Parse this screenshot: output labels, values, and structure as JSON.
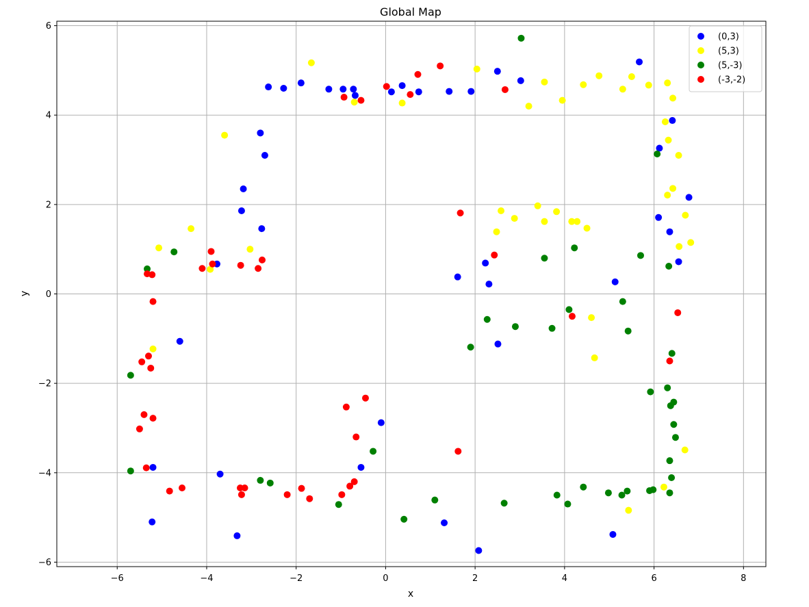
{
  "chart_data": {
    "type": "scatter",
    "title": "Global Map",
    "xlabel": "x",
    "ylabel": "y",
    "xlim": [
      -7.35,
      8.5
    ],
    "ylim": [
      -6.1,
      6.1
    ],
    "x_ticks": [
      -6,
      -4,
      -2,
      0,
      2,
      4,
      6,
      8
    ],
    "x_tick_labels": [
      "−6",
      "−4",
      "−2",
      "0",
      "2",
      "4",
      "6",
      "8"
    ],
    "y_ticks": [
      -6,
      -4,
      -2,
      0,
      2,
      4,
      6
    ],
    "y_tick_labels": [
      "−6",
      "−4",
      "−2",
      "0",
      "2",
      "4",
      "6"
    ],
    "grid": true,
    "legend_position": "top-right",
    "series": [
      {
        "name": "(0,3)",
        "color": "#0000ff",
        "points": [
          [
            -2.62,
            4.63
          ],
          [
            -2.28,
            4.6
          ],
          [
            -1.89,
            4.72
          ],
          [
            -1.27,
            4.58
          ],
          [
            -0.95,
            4.58
          ],
          [
            -0.72,
            4.58
          ],
          [
            -0.68,
            4.44
          ],
          [
            0.13,
            4.52
          ],
          [
            0.37,
            4.66
          ],
          [
            0.74,
            4.52
          ],
          [
            1.42,
            4.53
          ],
          [
            1.91,
            4.53
          ],
          [
            2.5,
            4.98
          ],
          [
            3.02,
            4.77
          ],
          [
            5.67,
            5.19
          ],
          [
            -2.8,
            3.6
          ],
          [
            -2.7,
            3.1
          ],
          [
            -3.18,
            2.35
          ],
          [
            -3.22,
            1.86
          ],
          [
            -2.77,
            1.46
          ],
          [
            -3.77,
            0.67
          ],
          [
            -4.6,
            -1.06
          ],
          [
            -5.2,
            -3.88
          ],
          [
            -5.22,
            -5.1
          ],
          [
            -3.7,
            -4.03
          ],
          [
            -3.32,
            -5.41
          ],
          [
            -0.55,
            -3.88
          ],
          [
            -0.1,
            -2.88
          ],
          [
            1.31,
            -5.12
          ],
          [
            2.08,
            -5.74
          ],
          [
            5.08,
            -5.38
          ],
          [
            1.61,
            0.38
          ],
          [
            2.23,
            0.69
          ],
          [
            2.31,
            0.22
          ],
          [
            2.51,
            -1.12
          ],
          [
            5.13,
            0.27
          ],
          [
            6.41,
            3.88
          ],
          [
            6.12,
            3.26
          ],
          [
            6.1,
            1.71
          ],
          [
            6.35,
            1.39
          ],
          [
            6.55,
            0.72
          ],
          [
            6.78,
            2.16
          ]
        ]
      },
      {
        "name": "(5,3)",
        "color": "#ffff00",
        "points": [
          [
            -1.66,
            5.17
          ],
          [
            -0.7,
            4.29
          ],
          [
            0.37,
            4.27
          ],
          [
            2.04,
            5.03
          ],
          [
            3.2,
            4.2
          ],
          [
            3.55,
            4.74
          ],
          [
            3.95,
            4.33
          ],
          [
            4.42,
            4.68
          ],
          [
            4.77,
            4.88
          ],
          [
            5.3,
            4.58
          ],
          [
            5.5,
            4.86
          ],
          [
            5.88,
            4.67
          ],
          [
            6.3,
            4.72
          ],
          [
            6.42,
            4.38
          ],
          [
            6.25,
            3.85
          ],
          [
            6.32,
            3.44
          ],
          [
            6.55,
            3.1
          ],
          [
            6.3,
            2.21
          ],
          [
            6.42,
            2.36
          ],
          [
            6.7,
            1.76
          ],
          [
            6.82,
            1.15
          ],
          [
            6.56,
            1.06
          ],
          [
            -3.6,
            3.55
          ],
          [
            -4.35,
            1.46
          ],
          [
            -5.07,
            1.03
          ],
          [
            -3.03,
            1.0
          ],
          [
            -3.92,
            0.55
          ],
          [
            -5.2,
            -1.23
          ],
          [
            2.48,
            1.39
          ],
          [
            2.58,
            1.86
          ],
          [
            2.88,
            1.69
          ],
          [
            3.4,
            1.97
          ],
          [
            3.55,
            1.62
          ],
          [
            3.82,
            1.84
          ],
          [
            4.16,
            1.62
          ],
          [
            4.28,
            1.62
          ],
          [
            4.5,
            1.47
          ],
          [
            4.6,
            -0.53
          ],
          [
            4.67,
            -1.43
          ],
          [
            6.69,
            -3.49
          ],
          [
            6.22,
            -4.32
          ],
          [
            5.43,
            -4.84
          ]
        ]
      },
      {
        "name": "(5,-3)",
        "color": "#008000",
        "points": [
          [
            3.03,
            5.72
          ],
          [
            -4.73,
            0.94
          ],
          [
            -5.33,
            0.56
          ],
          [
            -5.7,
            -1.82
          ],
          [
            -5.7,
            -3.96
          ],
          [
            -2.8,
            -4.17
          ],
          [
            -2.58,
            -4.23
          ],
          [
            -1.05,
            -4.71
          ],
          [
            -0.28,
            -3.52
          ],
          [
            0.41,
            -5.04
          ],
          [
            1.1,
            -4.61
          ],
          [
            2.65,
            -4.68
          ],
          [
            3.83,
            -4.5
          ],
          [
            4.07,
            -4.7
          ],
          [
            4.42,
            -4.32
          ],
          [
            4.98,
            -4.45
          ],
          [
            5.28,
            -4.5
          ],
          [
            5.4,
            -4.41
          ],
          [
            5.9,
            -4.4
          ],
          [
            5.98,
            -4.38
          ],
          [
            6.35,
            -4.45
          ],
          [
            6.39,
            -4.11
          ],
          [
            6.35,
            -3.73
          ],
          [
            6.48,
            -3.21
          ],
          [
            6.44,
            -2.92
          ],
          [
            6.44,
            -2.42
          ],
          [
            6.37,
            -2.5
          ],
          [
            6.3,
            -2.1
          ],
          [
            5.92,
            -2.19
          ],
          [
            6.4,
            -1.33
          ],
          [
            5.42,
            -0.83
          ],
          [
            5.3,
            -0.17
          ],
          [
            5.7,
            0.86
          ],
          [
            6.33,
            0.62
          ],
          [
            6.07,
            3.13
          ],
          [
            3.55,
            0.8
          ],
          [
            4.22,
            1.03
          ],
          [
            4.1,
            -0.35
          ],
          [
            3.72,
            -0.77
          ],
          [
            2.9,
            -0.73
          ],
          [
            2.27,
            -0.57
          ],
          [
            1.9,
            -1.19
          ]
        ]
      },
      {
        "name": "(-3,-2)",
        "color": "#ff0000",
        "points": [
          [
            -0.93,
            4.4
          ],
          [
            -0.55,
            4.33
          ],
          [
            0.02,
            4.64
          ],
          [
            0.55,
            4.46
          ],
          [
            0.72,
            4.91
          ],
          [
            1.22,
            5.1
          ],
          [
            2.67,
            4.57
          ],
          [
            1.67,
            1.81
          ],
          [
            2.43,
            0.87
          ],
          [
            4.17,
            -0.5
          ],
          [
            6.53,
            -0.42
          ],
          [
            6.35,
            -1.5
          ],
          [
            1.62,
            -3.52
          ],
          [
            -0.45,
            -2.33
          ],
          [
            -0.88,
            -2.53
          ],
          [
            -0.66,
            -3.2
          ],
          [
            -0.7,
            -4.2
          ],
          [
            -0.8,
            -4.3
          ],
          [
            -0.98,
            -4.49
          ],
          [
            -1.7,
            -4.58
          ],
          [
            -1.88,
            -4.35
          ],
          [
            -2.2,
            -4.49
          ],
          [
            -3.15,
            -4.34
          ],
          [
            -3.22,
            -4.49
          ],
          [
            -3.25,
            -4.34
          ],
          [
            -4.55,
            -4.34
          ],
          [
            -4.83,
            -4.41
          ],
          [
            -5.35,
            -3.89
          ],
          [
            -5.2,
            -2.78
          ],
          [
            -5.4,
            -2.7
          ],
          [
            -5.5,
            -3.02
          ],
          [
            -5.25,
            -1.66
          ],
          [
            -5.3,
            -1.39
          ],
          [
            -5.45,
            -1.52
          ],
          [
            -5.2,
            -0.17
          ],
          [
            -5.22,
            0.43
          ],
          [
            -5.33,
            0.45
          ],
          [
            -4.1,
            0.57
          ],
          [
            -3.9,
            0.95
          ],
          [
            -3.87,
            0.67
          ],
          [
            -3.24,
            0.64
          ],
          [
            -2.85,
            0.57
          ],
          [
            -2.76,
            0.76
          ]
        ]
      }
    ]
  }
}
